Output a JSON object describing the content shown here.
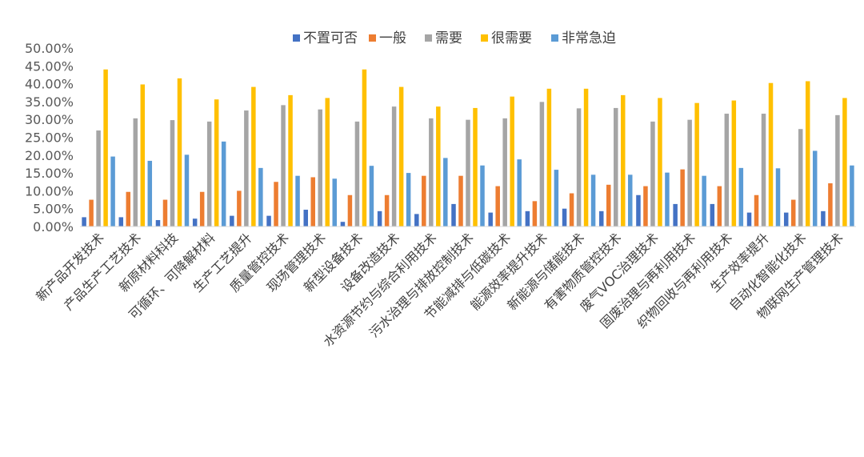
{
  "chart_data": {
    "type": "bar",
    "ylim": [
      0,
      50
    ],
    "y_ticks": [
      "0.00%",
      "5.00%",
      "10.00%",
      "15.00%",
      "20.00%",
      "25.00%",
      "30.00%",
      "35.00%",
      "40.00%",
      "45.00%",
      "50.00%"
    ],
    "legend_position": "top",
    "grid": false,
    "categories": [
      "新产品开发技术",
      "产品生产工艺技术",
      "新原材料科技",
      "可循环、可降解材料",
      "生产工艺提升",
      "质量管控技术",
      "现场管理技术",
      "新型设备技术",
      "设备改造技术",
      "水资源节约与综合利用技术",
      "污水治理与排放控制技术",
      "节能减排与低碳技术",
      "能源效率提升技术",
      "新能源与储能技术",
      "有害物质管控技术",
      "废气VOC治理技术",
      "固废治理与再利用技术",
      "织物回收与再利用技术",
      "生产效率提升",
      "自动化智能化技术",
      "物联网生产管理技术"
    ],
    "series": [
      {
        "name": "不置可否",
        "color": "#4472C4",
        "values": [
          2.6,
          2.6,
          1.8,
          2.2,
          3.0,
          3.0,
          4.7,
          1.3,
          4.3,
          3.5,
          6.3,
          3.9,
          4.3,
          5.0,
          4.3,
          8.8,
          6.3,
          6.3,
          3.9,
          3.9,
          4.3
        ]
      },
      {
        "name": "一般",
        "color": "#ED7D31",
        "values": [
          7.5,
          9.7,
          7.5,
          9.7,
          10.0,
          12.5,
          13.8,
          8.8,
          8.8,
          14.2,
          14.2,
          11.3,
          7.1,
          9.3,
          11.7,
          11.3,
          16.0,
          11.3,
          8.8,
          7.5,
          12.1
        ]
      },
      {
        "name": "需要",
        "color": "#A5A5A5",
        "values": [
          26.9,
          30.3,
          29.8,
          29.4,
          32.5,
          34.0,
          32.8,
          29.4,
          33.6,
          30.3,
          29.9,
          30.3,
          34.9,
          33.1,
          33.2,
          29.4,
          29.9,
          31.6,
          31.6,
          27.3,
          31.2
        ]
      },
      {
        "name": "很需要",
        "color": "#FFC000",
        "values": [
          44.0,
          39.8,
          41.5,
          35.6,
          39.1,
          36.8,
          36.0,
          44.0,
          39.1,
          33.6,
          33.2,
          36.4,
          38.6,
          38.6,
          36.8,
          36.0,
          34.6,
          35.3,
          40.2,
          40.7,
          36.0
        ]
      },
      {
        "name": "非常急迫",
        "color": "#5B9BD5",
        "values": [
          19.6,
          18.4,
          20.1,
          23.8,
          16.4,
          14.2,
          13.4,
          17.0,
          15.0,
          19.2,
          17.1,
          18.8,
          15.9,
          14.5,
          14.5,
          15.1,
          14.2,
          16.4,
          16.3,
          21.2,
          17.1
        ]
      }
    ]
  }
}
